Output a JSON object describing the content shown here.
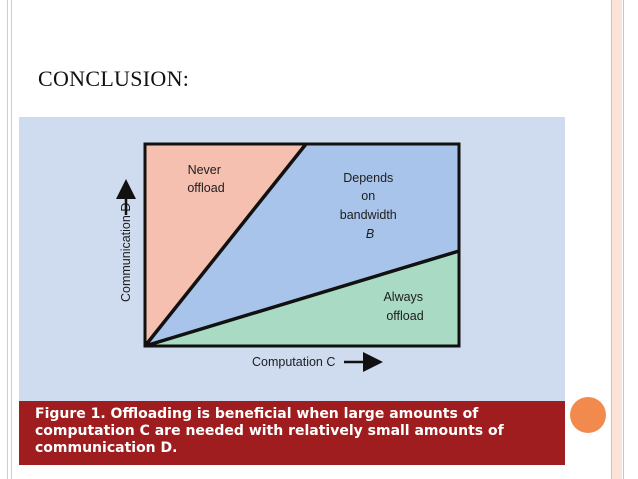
{
  "slide": {
    "title": "CONCLUSION:",
    "accent_band_color": "#fbe3d7",
    "bullet_dot_color": "#f28a4e"
  },
  "figure": {
    "regions": [
      {
        "label_lines": [
          "Never",
          "offload"
        ],
        "color": "#f5c0b0"
      },
      {
        "label_lines": [
          "Depends",
          "on",
          "bandwidth",
          "B"
        ],
        "color": "#a9c4ea"
      },
      {
        "label_lines": [
          "Always",
          "offload"
        ],
        "color": "#a8dac4"
      }
    ],
    "x_axis_label": "Computation C",
    "y_axis_label": "Communication D",
    "caption": "Figure 1. Offloading is beneficial when large amounts of computation C are needed with relatively small amounts of communication D.",
    "caption_color": "#a01d1f",
    "background_color": "#cfdcef"
  }
}
